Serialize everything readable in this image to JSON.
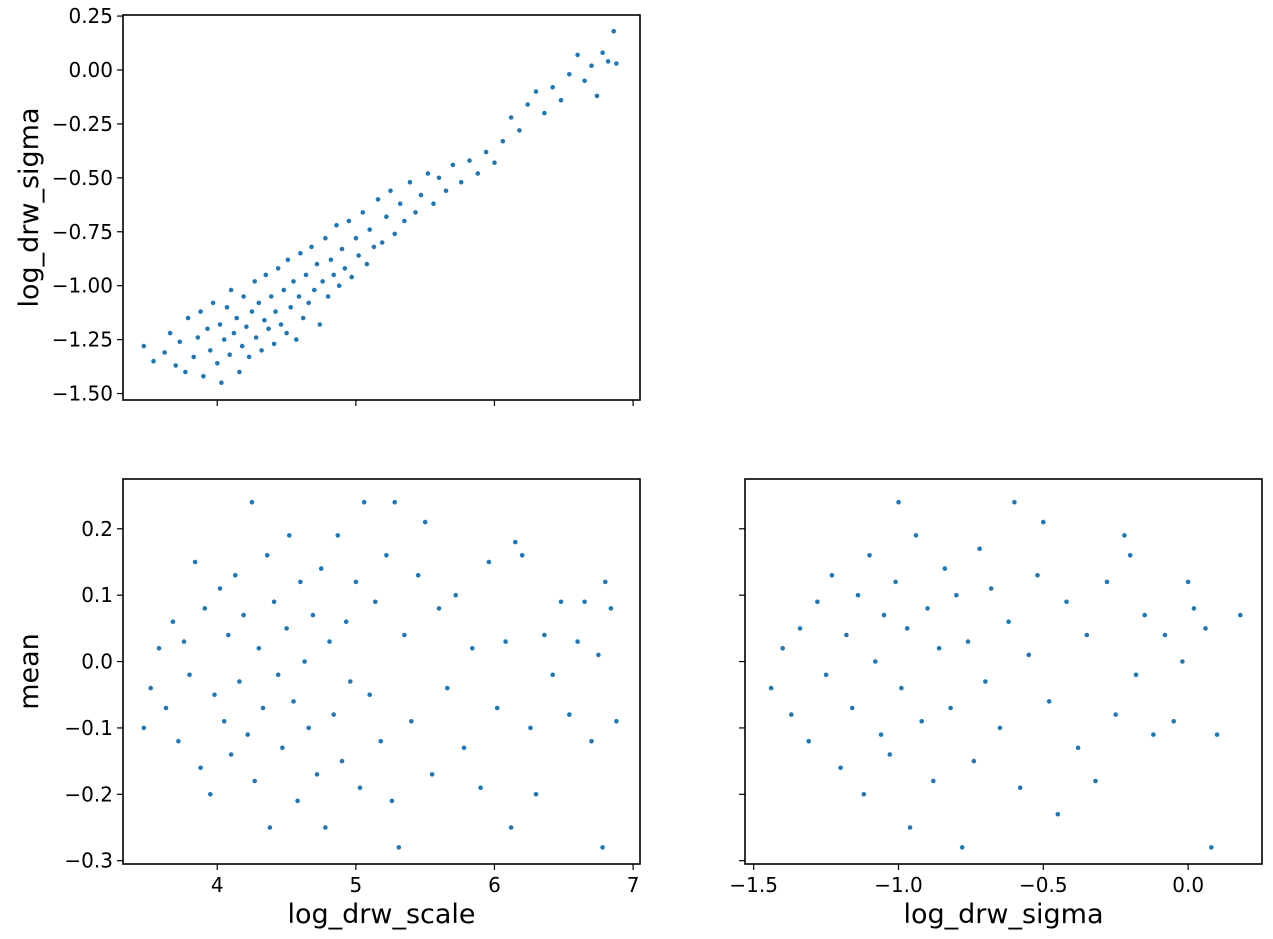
{
  "colors": {
    "points": "#1f77b4",
    "axes": "#000000",
    "background": "#ffffff"
  },
  "chart_data": [
    {
      "id": "top-left",
      "type": "scatter",
      "title": "",
      "xlabel": "",
      "ylabel": "log_drw_sigma",
      "xlim": [
        3.32,
        7.05
      ],
      "ylim": [
        -1.53,
        0.255
      ],
      "xticks": [
        4,
        5,
        6,
        7
      ],
      "xtick_labels": [
        "",
        "",
        "",
        ""
      ],
      "yticks": [
        -1.5,
        -1.25,
        -1.0,
        -0.75,
        -0.5,
        -0.25,
        0.0,
        0.25
      ],
      "ytick_labels": [
        "−1.50",
        "−1.25",
        "−1.00",
        "−0.75",
        "−0.50",
        "−0.25",
        "0.00",
        "0.25"
      ],
      "grid": false,
      "legend": "none",
      "points": [
        [
          3.47,
          -1.28
        ],
        [
          3.54,
          -1.35
        ],
        [
          3.62,
          -1.31
        ],
        [
          3.66,
          -1.22
        ],
        [
          3.7,
          -1.37
        ],
        [
          3.73,
          -1.26
        ],
        [
          3.77,
          -1.4
        ],
        [
          3.79,
          -1.15
        ],
        [
          3.83,
          -1.33
        ],
        [
          3.86,
          -1.24
        ],
        [
          3.88,
          -1.12
        ],
        [
          3.9,
          -1.42
        ],
        [
          3.93,
          -1.2
        ],
        [
          3.95,
          -1.3
        ],
        [
          3.97,
          -1.08
        ],
        [
          4.0,
          -1.36
        ],
        [
          4.02,
          -1.18
        ],
        [
          4.03,
          -1.45
        ],
        [
          4.05,
          -1.25
        ],
        [
          4.07,
          -1.1
        ],
        [
          4.09,
          -1.32
        ],
        [
          4.1,
          -1.02
        ],
        [
          4.12,
          -1.22
        ],
        [
          4.14,
          -1.15
        ],
        [
          4.16,
          -1.4
        ],
        [
          4.18,
          -1.28
        ],
        [
          4.19,
          -1.05
        ],
        [
          4.21,
          -1.19
        ],
        [
          4.23,
          -1.33
        ],
        [
          4.25,
          -1.12
        ],
        [
          4.27,
          -0.98
        ],
        [
          4.28,
          -1.24
        ],
        [
          4.3,
          -1.08
        ],
        [
          4.32,
          -1.3
        ],
        [
          4.34,
          -1.16
        ],
        [
          4.35,
          -0.95
        ],
        [
          4.37,
          -1.2
        ],
        [
          4.39,
          -1.05
        ],
        [
          4.41,
          -1.27
        ],
        [
          4.42,
          -1.12
        ],
        [
          4.44,
          -0.92
        ],
        [
          4.46,
          -1.18
        ],
        [
          4.48,
          -1.02
        ],
        [
          4.5,
          -1.22
        ],
        [
          4.51,
          -0.88
        ],
        [
          4.53,
          -1.1
        ],
        [
          4.55,
          -0.98
        ],
        [
          4.57,
          -1.25
        ],
        [
          4.59,
          -1.05
        ],
        [
          4.6,
          -0.85
        ],
        [
          4.62,
          -1.15
        ],
        [
          4.64,
          -0.95
        ],
        [
          4.66,
          -1.08
        ],
        [
          4.68,
          -0.82
        ],
        [
          4.7,
          -1.02
        ],
        [
          4.72,
          -0.9
        ],
        [
          4.74,
          -1.18
        ],
        [
          4.76,
          -0.98
        ],
        [
          4.78,
          -0.78
        ],
        [
          4.8,
          -1.05
        ],
        [
          4.82,
          -0.88
        ],
        [
          4.84,
          -0.95
        ],
        [
          4.86,
          -0.72
        ],
        [
          4.88,
          -1.0
        ],
        [
          4.9,
          -0.83
        ],
        [
          4.92,
          -0.92
        ],
        [
          4.95,
          -0.7
        ],
        [
          4.97,
          -0.96
        ],
        [
          5.0,
          -0.78
        ],
        [
          5.02,
          -0.86
        ],
        [
          5.05,
          -0.66
        ],
        [
          5.08,
          -0.9
        ],
        [
          5.1,
          -0.74
        ],
        [
          5.13,
          -0.82
        ],
        [
          5.16,
          -0.6
        ],
        [
          5.19,
          -0.8
        ],
        [
          5.22,
          -0.68
        ],
        [
          5.25,
          -0.56
        ],
        [
          5.28,
          -0.76
        ],
        [
          5.32,
          -0.62
        ],
        [
          5.35,
          -0.7
        ],
        [
          5.39,
          -0.52
        ],
        [
          5.43,
          -0.66
        ],
        [
          5.47,
          -0.58
        ],
        [
          5.52,
          -0.48
        ],
        [
          5.56,
          -0.62
        ],
        [
          5.6,
          -0.5
        ],
        [
          5.65,
          -0.56
        ],
        [
          5.7,
          -0.44
        ],
        [
          5.76,
          -0.52
        ],
        [
          5.82,
          -0.42
        ],
        [
          5.88,
          -0.48
        ],
        [
          5.94,
          -0.38
        ],
        [
          6.0,
          -0.43
        ],
        [
          6.06,
          -0.33
        ],
        [
          6.12,
          -0.22
        ],
        [
          6.18,
          -0.28
        ],
        [
          6.24,
          -0.16
        ],
        [
          6.3,
          -0.1
        ],
        [
          6.36,
          -0.2
        ],
        [
          6.42,
          -0.08
        ],
        [
          6.48,
          -0.14
        ],
        [
          6.54,
          -0.02
        ],
        [
          6.6,
          0.07
        ],
        [
          6.65,
          -0.05
        ],
        [
          6.7,
          0.02
        ],
        [
          6.74,
          -0.12
        ],
        [
          6.78,
          0.08
        ],
        [
          6.82,
          0.04
        ],
        [
          6.86,
          0.18
        ],
        [
          6.88,
          0.03
        ]
      ]
    },
    {
      "id": "bottom-left",
      "type": "scatter",
      "title": "",
      "xlabel": "log_drw_scale",
      "ylabel": "mean",
      "xlim": [
        3.32,
        7.05
      ],
      "ylim": [
        -0.305,
        0.275
      ],
      "xticks": [
        4,
        5,
        6,
        7
      ],
      "xtick_labels": [
        "4",
        "5",
        "6",
        "7"
      ],
      "yticks": [
        -0.3,
        -0.2,
        -0.1,
        0.0,
        0.1,
        0.2
      ],
      "ytick_labels": [
        "−0.3",
        "−0.2",
        "−0.1",
        "0.0",
        "0.1",
        "0.2"
      ],
      "grid": false,
      "legend": "none",
      "points": [
        [
          3.47,
          -0.1
        ],
        [
          3.52,
          -0.04
        ],
        [
          3.58,
          0.02
        ],
        [
          3.63,
          -0.07
        ],
        [
          3.68,
          0.06
        ],
        [
          3.72,
          -0.12
        ],
        [
          3.76,
          0.03
        ],
        [
          3.8,
          -0.02
        ],
        [
          3.84,
          0.15
        ],
        [
          3.88,
          -0.16
        ],
        [
          3.91,
          0.08
        ],
        [
          3.95,
          -0.2
        ],
        [
          3.98,
          -0.05
        ],
        [
          4.02,
          0.11
        ],
        [
          4.05,
          -0.09
        ],
        [
          4.08,
          0.04
        ],
        [
          4.1,
          -0.14
        ],
        [
          4.13,
          0.13
        ],
        [
          4.16,
          -0.03
        ],
        [
          4.19,
          0.07
        ],
        [
          4.22,
          -0.11
        ],
        [
          4.25,
          0.24
        ],
        [
          4.27,
          -0.18
        ],
        [
          4.3,
          0.02
        ],
        [
          4.33,
          -0.07
        ],
        [
          4.36,
          0.16
        ],
        [
          4.38,
          -0.25
        ],
        [
          4.41,
          0.09
        ],
        [
          4.44,
          -0.02
        ],
        [
          4.47,
          -0.13
        ],
        [
          4.5,
          0.05
        ],
        [
          4.52,
          0.19
        ],
        [
          4.55,
          -0.06
        ],
        [
          4.58,
          -0.21
        ],
        [
          4.6,
          0.12
        ],
        [
          4.63,
          0.0
        ],
        [
          4.66,
          -0.1
        ],
        [
          4.69,
          0.07
        ],
        [
          4.72,
          -0.17
        ],
        [
          4.75,
          0.14
        ],
        [
          4.78,
          -0.25
        ],
        [
          4.81,
          0.03
        ],
        [
          4.84,
          -0.08
        ],
        [
          4.87,
          0.19
        ],
        [
          4.9,
          -0.15
        ],
        [
          4.93,
          0.06
        ],
        [
          4.96,
          -0.03
        ],
        [
          5.0,
          0.12
        ],
        [
          5.03,
          -0.19
        ],
        [
          5.06,
          0.24
        ],
        [
          5.1,
          -0.05
        ],
        [
          5.14,
          0.09
        ],
        [
          5.18,
          -0.12
        ],
        [
          5.22,
          0.16
        ],
        [
          5.26,
          -0.21
        ],
        [
          5.28,
          0.24
        ],
        [
          5.31,
          -0.28
        ],
        [
          5.35,
          0.04
        ],
        [
          5.4,
          -0.09
        ],
        [
          5.45,
          0.13
        ],
        [
          5.5,
          0.21
        ],
        [
          5.55,
          -0.17
        ],
        [
          5.6,
          0.08
        ],
        [
          5.66,
          -0.04
        ],
        [
          5.72,
          0.1
        ],
        [
          5.78,
          -0.13
        ],
        [
          5.84,
          0.02
        ],
        [
          5.9,
          -0.19
        ],
        [
          5.96,
          0.15
        ],
        [
          6.02,
          -0.07
        ],
        [
          6.08,
          0.03
        ],
        [
          6.12,
          -0.25
        ],
        [
          6.15,
          0.18
        ],
        [
          6.2,
          0.16
        ],
        [
          6.26,
          -0.1
        ],
        [
          6.3,
          -0.2
        ],
        [
          6.36,
          0.04
        ],
        [
          6.42,
          -0.02
        ],
        [
          6.48,
          0.09
        ],
        [
          6.54,
          -0.08
        ],
        [
          6.6,
          0.03
        ],
        [
          6.65,
          0.09
        ],
        [
          6.7,
          -0.12
        ],
        [
          6.75,
          0.01
        ],
        [
          6.78,
          -0.28
        ],
        [
          6.8,
          0.12
        ],
        [
          6.84,
          0.08
        ],
        [
          6.88,
          -0.09
        ]
      ]
    },
    {
      "id": "bottom-right",
      "type": "scatter",
      "title": "",
      "xlabel": "log_drw_sigma",
      "ylabel": "",
      "xlim": [
        -1.53,
        0.255
      ],
      "ylim": [
        -0.305,
        0.275
      ],
      "xticks": [
        -1.5,
        -1.0,
        -0.5,
        0.0
      ],
      "xtick_labels": [
        "−1.5",
        "−1.0",
        "−0.5",
        "0.0"
      ],
      "yticks": [
        -0.3,
        -0.2,
        -0.1,
        0.0,
        0.1,
        0.2
      ],
      "ytick_labels": [
        "",
        "",
        "",
        "",
        "",
        ""
      ],
      "grid": false,
      "legend": "none",
      "points": [
        [
          -1.44,
          -0.04
        ],
        [
          -1.4,
          0.02
        ],
        [
          -1.37,
          -0.08
        ],
        [
          -1.34,
          0.05
        ],
        [
          -1.31,
          -0.12
        ],
        [
          -1.28,
          0.09
        ],
        [
          -1.25,
          -0.02
        ],
        [
          -1.23,
          0.13
        ],
        [
          -1.2,
          -0.16
        ],
        [
          -1.18,
          0.04
        ],
        [
          -1.16,
          -0.07
        ],
        [
          -1.14,
          0.1
        ],
        [
          -1.12,
          -0.2
        ],
        [
          -1.1,
          0.16
        ],
        [
          -1.08,
          0.0
        ],
        [
          -1.06,
          -0.11
        ],
        [
          -1.05,
          0.07
        ],
        [
          -1.03,
          -0.14
        ],
        [
          -1.01,
          0.12
        ],
        [
          -1.0,
          0.24
        ],
        [
          -0.99,
          -0.04
        ],
        [
          -0.97,
          0.05
        ],
        [
          -0.96,
          -0.25
        ],
        [
          -0.94,
          0.19
        ],
        [
          -0.92,
          -0.09
        ],
        [
          -0.9,
          0.08
        ],
        [
          -0.88,
          -0.18
        ],
        [
          -0.86,
          0.02
        ],
        [
          -0.84,
          0.14
        ],
        [
          -0.82,
          -0.07
        ],
        [
          -0.8,
          0.1
        ],
        [
          -0.78,
          -0.28
        ],
        [
          -0.76,
          0.03
        ],
        [
          -0.74,
          -0.15
        ],
        [
          -0.72,
          0.17
        ],
        [
          -0.7,
          -0.03
        ],
        [
          -0.68,
          0.11
        ],
        [
          -0.65,
          -0.1
        ],
        [
          -0.62,
          0.06
        ],
        [
          -0.6,
          0.24
        ],
        [
          -0.58,
          -0.19
        ],
        [
          -0.55,
          0.01
        ],
        [
          -0.52,
          0.13
        ],
        [
          -0.5,
          0.21
        ],
        [
          -0.48,
          -0.06
        ],
        [
          -0.45,
          -0.23
        ],
        [
          -0.42,
          0.09
        ],
        [
          -0.38,
          -0.13
        ],
        [
          -0.35,
          0.04
        ],
        [
          -0.32,
          -0.18
        ],
        [
          -0.28,
          0.12
        ],
        [
          -0.25,
          -0.08
        ],
        [
          -0.22,
          0.19
        ],
        [
          -0.2,
          0.16
        ],
        [
          -0.18,
          -0.02
        ],
        [
          -0.15,
          0.07
        ],
        [
          -0.12,
          -0.11
        ],
        [
          -0.08,
          0.04
        ],
        [
          -0.05,
          -0.09
        ],
        [
          -0.02,
          0.0
        ],
        [
          0.0,
          0.12
        ],
        [
          0.02,
          0.08
        ],
        [
          0.06,
          0.05
        ],
        [
          0.08,
          -0.28
        ],
        [
          0.1,
          -0.11
        ],
        [
          0.18,
          0.07
        ]
      ]
    }
  ]
}
